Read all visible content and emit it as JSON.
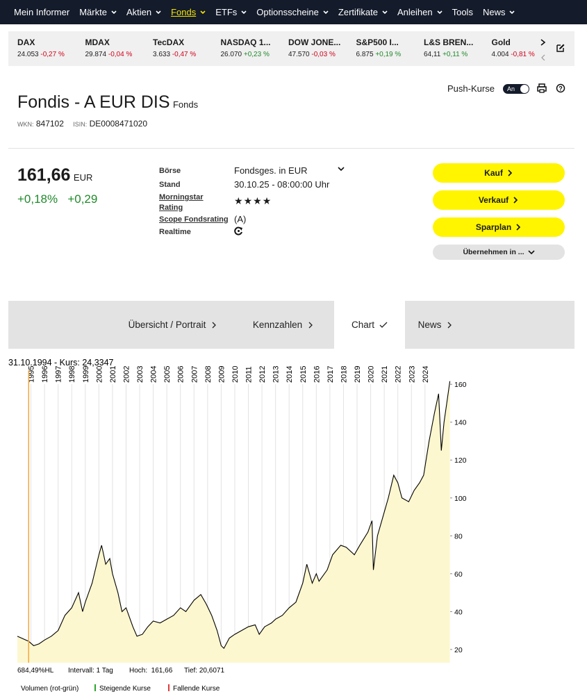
{
  "nav": {
    "active": 3,
    "items": [
      {
        "label": "Mein Informer",
        "has_menu": false
      },
      {
        "label": "Märkte",
        "has_menu": true
      },
      {
        "label": "Aktien",
        "has_menu": true
      },
      {
        "label": "Fonds",
        "has_menu": true
      },
      {
        "label": "ETFs",
        "has_menu": true
      },
      {
        "label": "Optionsscheine",
        "has_menu": true
      },
      {
        "label": "Zertifikate",
        "has_menu": true
      },
      {
        "label": "Anleihen",
        "has_menu": true
      },
      {
        "label": "Tools",
        "has_menu": false
      },
      {
        "label": "News",
        "has_menu": true
      }
    ]
  },
  "ticker": [
    {
      "name": "DAX",
      "value": "24.053",
      "change": "-0,27 %"
    },
    {
      "name": "MDAX",
      "value": "29.874",
      "change": "-0,04 %"
    },
    {
      "name": "TecDAX",
      "value": "3.633",
      "change": "-0,47 %"
    },
    {
      "name": "NASDAQ 1...",
      "value": "26.070",
      "change": "+0,23 %"
    },
    {
      "name": "DOW JONE...",
      "value": "47.570",
      "change": "-0,03 %"
    },
    {
      "name": "S&P500 I...",
      "value": "6.875",
      "change": "+0,19 %"
    },
    {
      "name": "L&S BREN...",
      "value": "64,11",
      "change": "+0,11 %"
    },
    {
      "name": "Gold",
      "value": "4.004",
      "change": "-0,81 %"
    }
  ],
  "header": {
    "title": "Fondis - A EUR DIS",
    "kind": "Fonds",
    "wkn_label": "WKN:",
    "wkn": "847102",
    "isin_label": "ISIN:",
    "isin": "DE0008471020",
    "push": "Push-Kurse",
    "toggle": "An"
  },
  "quote": {
    "price": "161,66",
    "currency": "EUR",
    "change_pct": "+0,18%",
    "change_abs": "+0,29"
  },
  "details": {
    "boerse_label": "Börse",
    "boerse": "Fondsges. in EUR",
    "stand_label": "Stand",
    "stand": "30.10.25 - 08:00:00 Uhr",
    "rating_label": "Morningstar Rating",
    "rating": 4,
    "scope_label": "Scope Fondsrating",
    "scope": "(A)",
    "realtime_label": "Realtime"
  },
  "buttons": [
    "Kauf",
    "Verkauf",
    "Sparplan",
    "Übernehmen in ..."
  ],
  "tabs": {
    "active": 2,
    "items": [
      "Übersicht / Portrait",
      "Kennzahlen",
      "Chart",
      "News"
    ]
  },
  "chart_data": {
    "type": "area",
    "crosshair": "31.10.1994  -  Kurs: 24,3347",
    "crosshair_index": 1,
    "color": "#000000",
    "fill": "#fdf7cf",
    "grid": "x",
    "x": [
      1994.0,
      1994.83,
      1995.2,
      1995.6,
      1996.0,
      1996.5,
      1997.0,
      1997.5,
      1998.0,
      1998.5,
      1998.8,
      1999.0,
      1999.5,
      2000.0,
      2000.2,
      2000.5,
      2000.8,
      2001.0,
      2001.4,
      2001.7,
      2002.0,
      2002.5,
      2002.8,
      2003.2,
      2003.6,
      2004.0,
      2004.5,
      2005.0,
      2005.5,
      2006.0,
      2006.4,
      2006.8,
      2007.0,
      2007.5,
      2007.9,
      2008.3,
      2008.7,
      2009.0,
      2009.2,
      2009.6,
      2010.0,
      2010.5,
      2011.0,
      2011.5,
      2011.8,
      2012.2,
      2012.7,
      2013.0,
      2013.5,
      2014.0,
      2014.5,
      2015.0,
      2015.3,
      2015.7,
      2016.0,
      2016.2,
      2016.8,
      2017.2,
      2017.8,
      2018.2,
      2018.8,
      2019.2,
      2019.8,
      2020.1,
      2020.2,
      2020.5,
      2020.9,
      2021.3,
      2021.7,
      2022.0,
      2022.3,
      2022.8,
      2023.2,
      2023.6,
      2023.9,
      2024.3,
      2024.7,
      2025.0,
      2025.2,
      2025.4,
      2025.6,
      2025.83
    ],
    "values": [
      27,
      24.3347,
      22,
      23,
      25,
      27,
      30,
      38,
      42,
      50,
      40,
      45,
      55,
      70,
      75,
      65,
      68,
      60,
      50,
      40,
      42,
      32,
      27,
      28,
      32,
      35,
      34,
      36,
      38,
      42,
      40,
      44,
      46,
      49,
      44,
      38,
      30,
      22,
      20.6071,
      26,
      28,
      30,
      32,
      33,
      28,
      32,
      34,
      36,
      38,
      42,
      45,
      55,
      65,
      55,
      60,
      56,
      62,
      70,
      75,
      74,
      70,
      75,
      82,
      88,
      62,
      80,
      90,
      100,
      112,
      108,
      100,
      98,
      104,
      108,
      112,
      130,
      145,
      155,
      125,
      140,
      150,
      161.66
    ],
    "xlim": [
      1994.0,
      2025.85
    ],
    "xticks": [
      1995,
      1996,
      1997,
      1998,
      1999,
      2000,
      2001,
      2002,
      2003,
      2004,
      2005,
      2006,
      2007,
      2008,
      2009,
      2010,
      2011,
      2012,
      2013,
      2014,
      2015,
      2016,
      2017,
      2018,
      2019,
      2020,
      2021,
      2022,
      2023,
      2024
    ],
    "ylim": [
      13,
      163
    ],
    "yticks": [
      20,
      40,
      60,
      80,
      100,
      120,
      140,
      160
    ],
    "stats": [
      "684,49%HL",
      "Intervall: 1 Tag",
      "Hoch:  161,66",
      "Tief: 20,6071"
    ],
    "legend": {
      "volume": "Volumen (rot-grün)",
      "up": "Steigende Kurse",
      "up_color": "#2aa52a",
      "down": "Fallende Kurse",
      "down_color": "#e03a3a"
    }
  }
}
